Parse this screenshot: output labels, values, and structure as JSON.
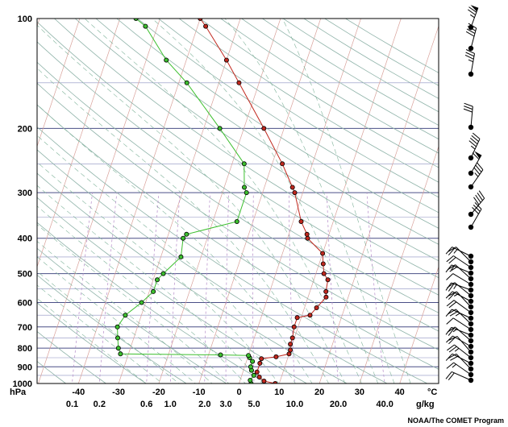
{
  "chart_data": {
    "type": "skew-t log-p sounding",
    "pressure_unit": "hPa",
    "temperature_unit": "°C",
    "mixing_ratio_unit": "g/kg",
    "pressure_ticks": [
      100,
      200,
      300,
      400,
      500,
      600,
      700,
      800,
      900,
      1000
    ],
    "temperature_ticks": [
      -40,
      -30,
      -20,
      -10,
      0,
      10,
      20,
      30,
      40
    ],
    "mixing_ratio_ticks": [
      "0.1",
      "0.2",
      "0.6",
      "1.0",
      "2.0",
      "3.0",
      "5.0",
      "10.0",
      "20.0",
      "40.0"
    ],
    "temperature_profile": [
      {
        "p": 1000,
        "t": 9
      },
      {
        "p": 985,
        "t": 6
      },
      {
        "p": 960,
        "t": 4.5
      },
      {
        "p": 930,
        "t": 3.5
      },
      {
        "p": 880,
        "t": 3.5
      },
      {
        "p": 855,
        "t": 3.5
      },
      {
        "p": 845,
        "t": 7
      },
      {
        "p": 830,
        "t": 10
      },
      {
        "p": 810,
        "t": 10
      },
      {
        "p": 780,
        "t": 9.5
      },
      {
        "p": 750,
        "t": 9.5
      },
      {
        "p": 700,
        "t": 9
      },
      {
        "p": 660,
        "t": 9
      },
      {
        "p": 650,
        "t": 12
      },
      {
        "p": 620,
        "t": 13
      },
      {
        "p": 580,
        "t": 14.5
      },
      {
        "p": 560,
        "t": 14
      },
      {
        "p": 520,
        "t": 13.5
      },
      {
        "p": 500,
        "t": 12
      },
      {
        "p": 470,
        "t": 11
      },
      {
        "p": 440,
        "t": 10
      },
      {
        "p": 400,
        "t": 5
      },
      {
        "p": 390,
        "t": 4.5
      },
      {
        "p": 360,
        "t": 2
      },
      {
        "p": 300,
        "t": -2
      },
      {
        "p": 290,
        "t": -3
      },
      {
        "p": 250,
        "t": -7.5
      },
      {
        "p": 200,
        "t": -15
      },
      {
        "p": 150,
        "t": -25
      },
      {
        "p": 130,
        "t": -30
      },
      {
        "p": 105,
        "t": -38
      },
      {
        "p": 100,
        "t": -40
      }
    ],
    "dewpoint_profile": [
      {
        "p": 1000,
        "t": 3
      },
      {
        "p": 980,
        "t": 2.5
      },
      {
        "p": 950,
        "t": 3
      },
      {
        "p": 920,
        "t": 2
      },
      {
        "p": 900,
        "t": 1.5
      },
      {
        "p": 870,
        "t": 1.5
      },
      {
        "p": 850,
        "t": 0.5
      },
      {
        "p": 838,
        "t": 0
      },
      {
        "p": 835,
        "t": -7
      },
      {
        "p": 830,
        "t": -32
      },
      {
        "p": 800,
        "t": -33
      },
      {
        "p": 750,
        "t": -34
      },
      {
        "p": 700,
        "t": -35
      },
      {
        "p": 650,
        "t": -34
      },
      {
        "p": 600,
        "t": -31
      },
      {
        "p": 560,
        "t": -29
      },
      {
        "p": 520,
        "t": -29
      },
      {
        "p": 500,
        "t": -28
      },
      {
        "p": 450,
        "t": -25
      },
      {
        "p": 400,
        "t": -26
      },
      {
        "p": 390,
        "t": -25.5
      },
      {
        "p": 360,
        "t": -14
      },
      {
        "p": 300,
        "t": -14
      },
      {
        "p": 290,
        "t": -15
      },
      {
        "p": 250,
        "t": -17
      },
      {
        "p": 200,
        "t": -26
      },
      {
        "p": 150,
        "t": -38
      },
      {
        "p": 130,
        "t": -45
      },
      {
        "p": 105,
        "t": -53
      },
      {
        "p": 100,
        "t": -56
      }
    ]
  },
  "credit": "NOAA/The COMET Program"
}
